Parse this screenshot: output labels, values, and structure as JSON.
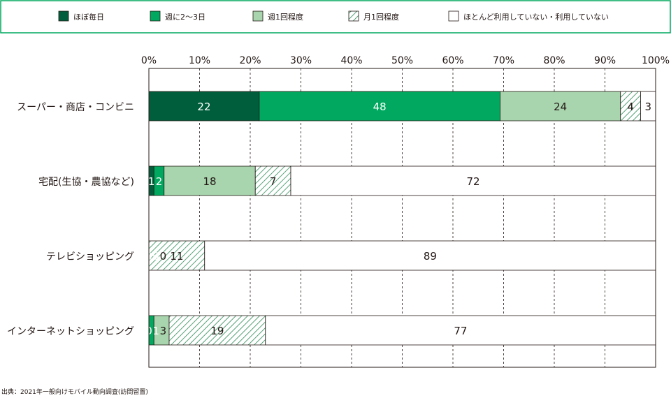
{
  "chart_data": {
    "type": "bar",
    "orientation": "horizontal",
    "stacked": true,
    "categories": [
      "スーパー・商店・コンビニ",
      "宅配(生協・農協など)",
      "テレビショッピング",
      "インターネットショッピング"
    ],
    "series": [
      {
        "name": "ほぼ毎日",
        "color": "#005e3c",
        "pattern": "solid",
        "values": [
          22,
          1,
          0,
          0
        ]
      },
      {
        "name": "週に2〜3日",
        "color": "#00a95f",
        "pattern": "solid",
        "values": [
          48,
          2,
          0,
          1
        ]
      },
      {
        "name": "週1回程度",
        "color": "#a8d5ae",
        "pattern": "solid",
        "values": [
          24,
          18,
          0,
          3
        ]
      },
      {
        "name": "月1回程度",
        "color": "#00a95f",
        "pattern": "hatch",
        "values": [
          4,
          7,
          11,
          19
        ]
      },
      {
        "name": "ほとんど利用していない・利用していない",
        "color": "#ffffff",
        "pattern": "solid",
        "values": [
          3,
          72,
          89,
          77
        ]
      }
    ],
    "x_ticks": [
      "0%",
      "10%",
      "20%",
      "30%",
      "40%",
      "50%",
      "60%",
      "70%",
      "80%",
      "90%",
      "100%"
    ],
    "xlim": [
      0,
      100
    ],
    "grid": "vertical dashed",
    "legend_position": "top",
    "title": "",
    "xlabel": "",
    "ylabel": "",
    "source": "出典：2021年一般向けモバイル動向調査(訪問留置)"
  }
}
